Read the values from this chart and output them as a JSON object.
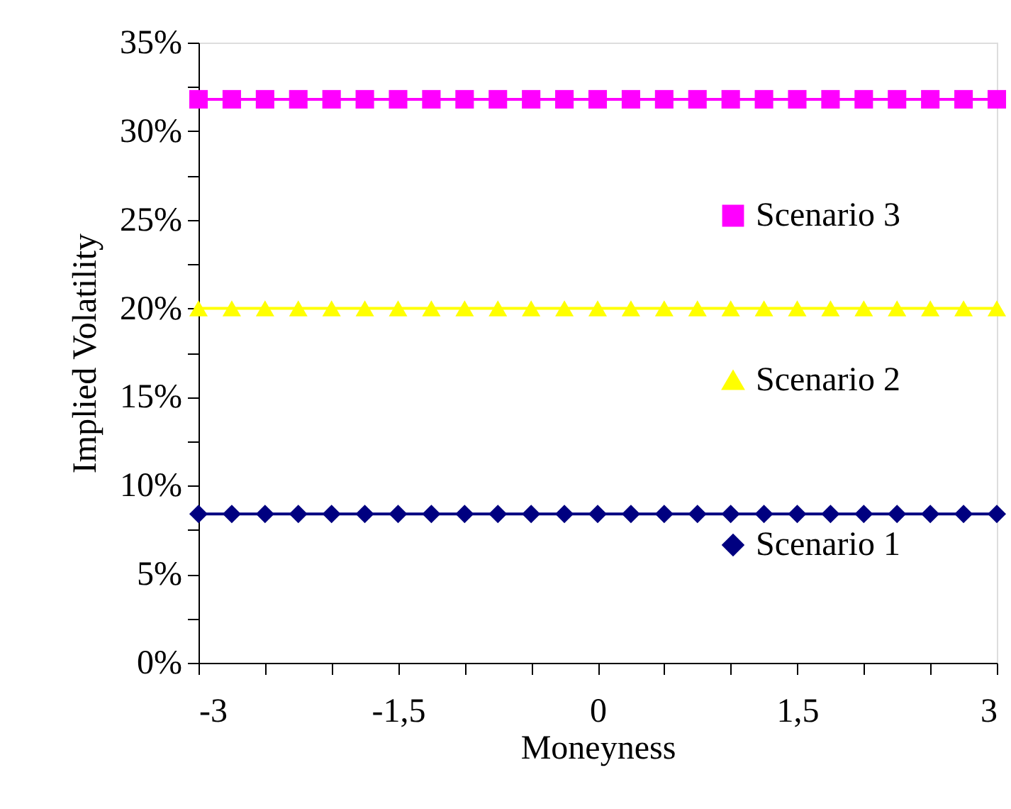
{
  "chart_data": {
    "type": "line",
    "xlabel": "Moneyness",
    "ylabel": "Implied Volatility",
    "x": [
      -3,
      -2.75,
      -2.5,
      -2.25,
      -2,
      -1.75,
      -1.5,
      -1.25,
      -1,
      -0.75,
      -0.5,
      -0.25,
      0,
      0.25,
      0.5,
      0.75,
      1,
      1.25,
      1.5,
      1.75,
      2,
      2.25,
      2.5,
      2.75,
      3
    ],
    "series": [
      {
        "name": "Scenario 3",
        "color": "#ff00ff",
        "marker": "square",
        "values": [
          31.8,
          31.8,
          31.8,
          31.8,
          31.8,
          31.8,
          31.8,
          31.8,
          31.8,
          31.8,
          31.8,
          31.8,
          31.8,
          31.8,
          31.8,
          31.8,
          31.8,
          31.8,
          31.8,
          31.8,
          31.8,
          31.8,
          31.8,
          31.8,
          31.8
        ]
      },
      {
        "name": "Scenario 2",
        "color": "#ffff00",
        "marker": "triangle",
        "values": [
          20,
          20,
          20,
          20,
          20,
          20,
          20,
          20,
          20,
          20,
          20,
          20,
          20,
          20,
          20,
          20,
          20,
          20,
          20,
          20,
          20,
          20,
          20,
          20,
          20
        ]
      },
      {
        "name": "Scenario 1",
        "color": "#000080",
        "marker": "diamond",
        "values": [
          8.4,
          8.4,
          8.4,
          8.4,
          8.4,
          8.4,
          8.4,
          8.4,
          8.4,
          8.4,
          8.4,
          8.4,
          8.4,
          8.4,
          8.4,
          8.4,
          8.4,
          8.4,
          8.4,
          8.4,
          8.4,
          8.4,
          8.4,
          8.4,
          8.4
        ]
      }
    ],
    "xlim": [
      -3,
      3
    ],
    "ylim": [
      0,
      35
    ],
    "xticks": [
      -3,
      {
        "value": -2.5,
        "label": null
      },
      {
        "value": -2,
        "label": null
      },
      {
        "value": -1.5,
        "label": "-1,5"
      },
      {
        "value": -1,
        "label": null
      },
      {
        "value": -0.5,
        "label": null
      },
      0,
      {
        "value": 0.5,
        "label": null
      },
      {
        "value": 1,
        "label": null
      },
      {
        "value": 1.5,
        "label": "1,5"
      },
      {
        "value": 2,
        "label": null
      },
      {
        "value": 2.5,
        "label": null
      },
      3
    ],
    "yticks": [
      {
        "value": 0,
        "label": "0%"
      },
      {
        "value": 2.5,
        "label": null
      },
      {
        "value": 5,
        "label": "5%"
      },
      {
        "value": 7.5,
        "label": null
      },
      {
        "value": 10,
        "label": "10%"
      },
      {
        "value": 12.5,
        "label": null
      },
      {
        "value": 15,
        "label": "15%"
      },
      {
        "value": 17.5,
        "label": null
      },
      {
        "value": 20,
        "label": "20%"
      },
      {
        "value": 22.5,
        "label": null
      },
      {
        "value": 25,
        "label": "25%"
      },
      {
        "value": 27.5,
        "label": null
      },
      {
        "value": 30,
        "label": "30%"
      },
      {
        "value": 32.5,
        "label": null
      },
      {
        "value": 35,
        "label": "35%"
      }
    ],
    "grid": false,
    "legend": "right"
  }
}
